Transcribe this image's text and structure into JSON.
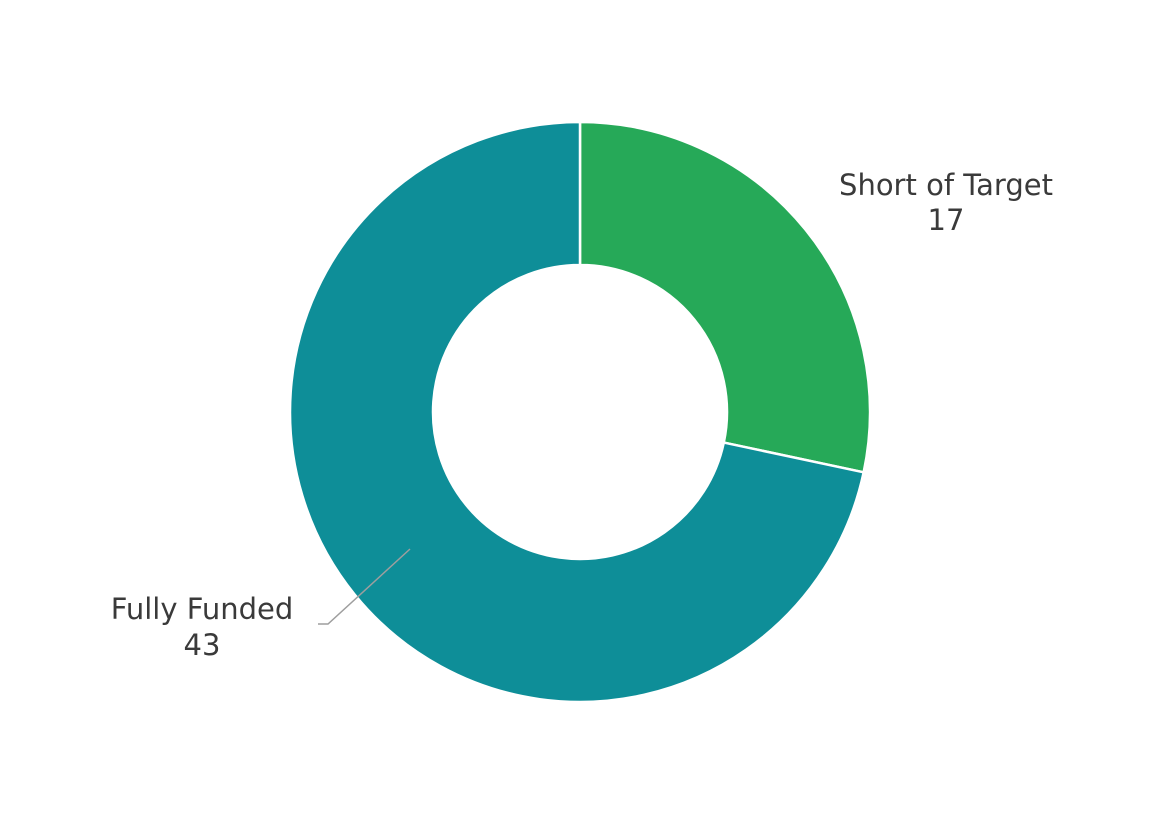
{
  "chart_data": {
    "type": "donut",
    "title": "",
    "start_angle_deg": 0,
    "direction": "clockwise",
    "slices": [
      {
        "label": "Short of Target",
        "value": 17,
        "value_label": "17",
        "color": "#26a958"
      },
      {
        "label": "Fully Funded",
        "value": 43,
        "value_label": "43",
        "color": "#0e8e98"
      }
    ],
    "slice_border_color": "#ffffff",
    "label_color": "#3a3a3a",
    "leader_line_color": "#9e9e9e"
  }
}
